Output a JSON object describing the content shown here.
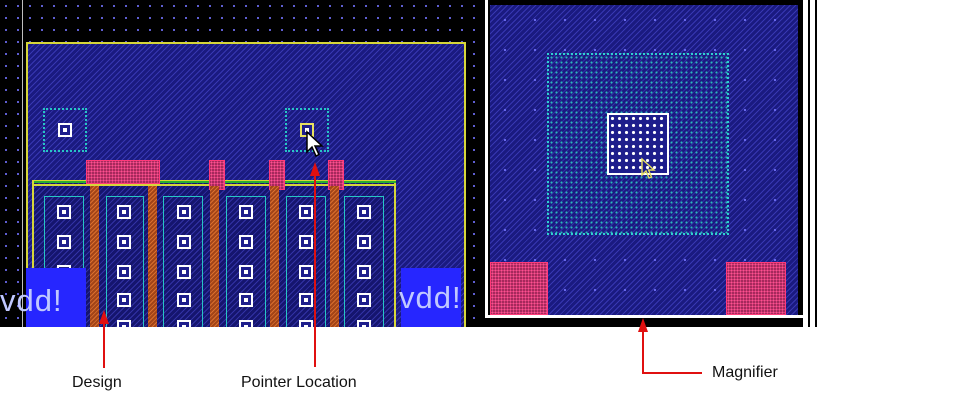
{
  "design_view": {
    "vdd_label_left": "vdd!",
    "vdd_label_right": "vdd!"
  },
  "annotations": {
    "design": "Design",
    "pointer_location": "Pointer Location",
    "magnifier": "Magnifier"
  },
  "colors": {
    "background": "#000000",
    "metal_fill": "#1a1a80",
    "outline": "#d6d63a",
    "via_outline": "#27c5c5",
    "poly": "#ff3a7a",
    "vdd_fill": "#2626ff",
    "arrow": "#e01010"
  },
  "icons": {
    "cursor": "arrow-pointer-icon"
  }
}
